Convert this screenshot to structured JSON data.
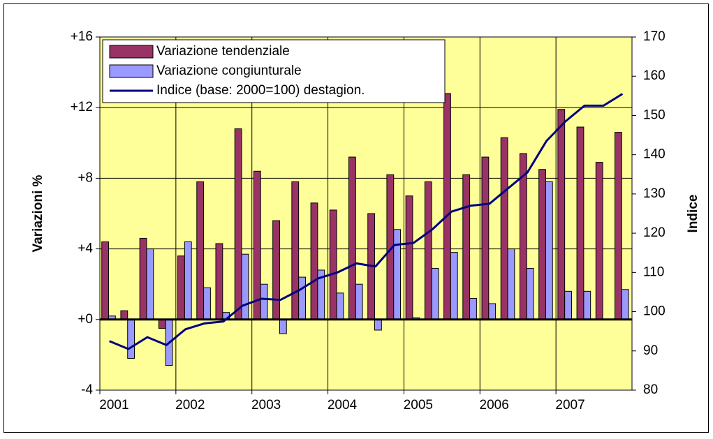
{
  "chart_data": {
    "type": "bar",
    "categories": [
      "2001",
      null,
      null,
      null,
      "2002",
      null,
      null,
      null,
      "2003",
      null,
      null,
      null,
      "2004",
      null,
      null,
      null,
      "2005",
      null,
      null,
      null,
      "2006",
      null,
      null,
      null,
      "2007",
      null,
      null,
      null
    ],
    "series": [
      {
        "name": "Variazione tendenziale",
        "color": "#993366",
        "values": [
          4.4,
          0.5,
          4.6,
          -0.5,
          3.6,
          7.8,
          4.3,
          10.8,
          8.4,
          5.6,
          7.8,
          6.6,
          6.2,
          9.2,
          6.0,
          8.2,
          7.0,
          7.8,
          12.8,
          8.2,
          9.2,
          10.3,
          9.4,
          8.5,
          11.9,
          10.9,
          8.9,
          10.6
        ]
      },
      {
        "name": "Variazione congiunturale",
        "color": "#9999ff",
        "values": [
          0.2,
          -2.2,
          4.0,
          -2.6,
          4.4,
          1.8,
          0.4,
          3.7,
          2.0,
          -0.8,
          2.4,
          2.8,
          1.5,
          2.0,
          -0.6,
          5.1,
          0.1,
          2.9,
          3.8,
          1.2,
          0.9,
          4.0,
          2.9,
          7.8,
          1.6,
          1.6,
          0.0,
          1.7
        ]
      },
      {
        "name": "Indice (base: 2000=100) destagion.",
        "color": "#000080",
        "type": "line",
        "axis": "y2",
        "values": [
          92.5,
          90.5,
          93.5,
          91.5,
          95.5,
          97,
          97.5,
          101.5,
          103.3,
          103,
          105.5,
          108.5,
          110,
          112.3,
          111.5,
          117,
          117.5,
          121,
          125.5,
          127,
          127.5,
          131.5,
          135.5,
          143.5,
          148.5,
          152.5,
          152.5,
          155.5
        ]
      }
    ],
    "y_label": "Variazioni %",
    "y2_label": "Indice",
    "ylim": [
      -4,
      16
    ],
    "yticks": [
      -4,
      {
        "value": 0,
        "label": "+0"
      },
      {
        "value": 4,
        "label": "+4"
      },
      {
        "value": 8,
        "label": "+8"
      },
      {
        "value": 12,
        "label": "+12"
      },
      {
        "value": 16,
        "label": "+16"
      }
    ],
    "y2lim": [
      80,
      170
    ],
    "y2ticks": [
      80,
      90,
      100,
      110,
      120,
      130,
      140,
      150,
      160,
      170
    ],
    "grid": true,
    "legend": "upper left",
    "background": "#ffff99"
  }
}
